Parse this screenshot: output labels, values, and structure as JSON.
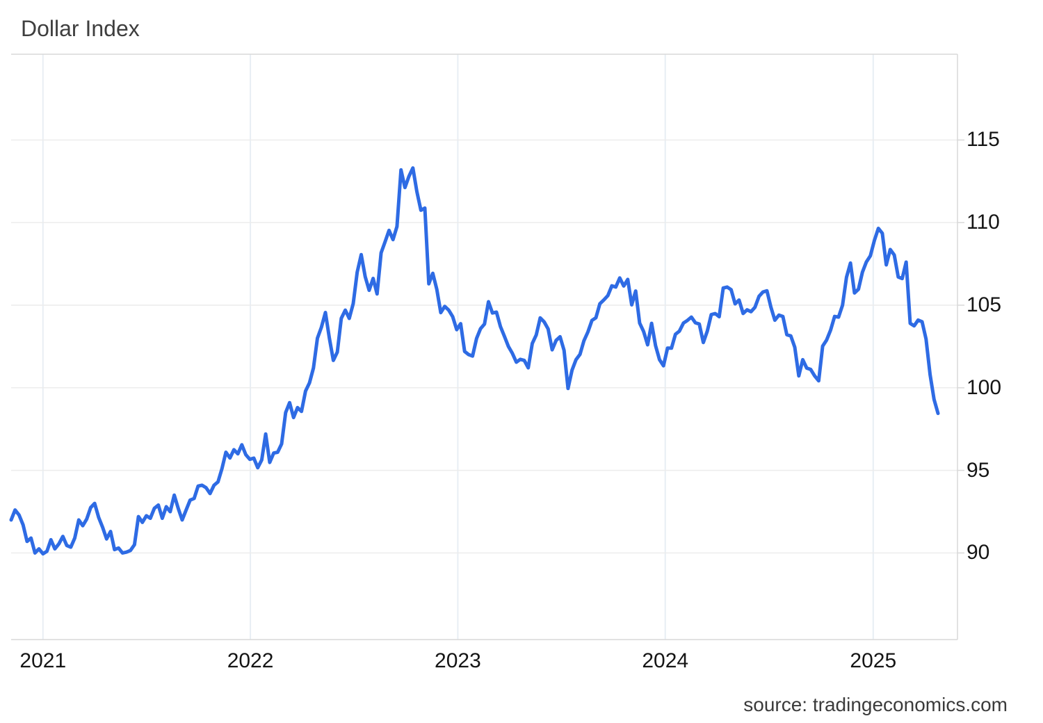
{
  "header": {
    "title": "Dollar Index"
  },
  "footer": {
    "source": "source: tradingeconomics.com"
  },
  "colors": {
    "line": "#2e6be4",
    "h_gridline": "#ececec",
    "v_gridline": "#e8eef4",
    "axis_border": "#d8d8d8",
    "axis_label": "#151515",
    "title_text": "#3e3e3e"
  },
  "chart_data": {
    "type": "line",
    "title": "Dollar Index",
    "frequency": "weekly",
    "x_start": "2020-11-06",
    "x_end": "2025-04-25",
    "x_tick_labels": [
      "2021",
      "2022",
      "2023",
      "2024",
      "2025"
    ],
    "x_tick_week_indices": [
      8,
      60.14,
      112.29,
      164.43,
      216.71
    ],
    "y_ticks": [
      115,
      110,
      105,
      100,
      95,
      90
    ],
    "y_range_visible": [
      85.0,
      120.2
    ],
    "grid": true,
    "legend": "none",
    "values": [
      92.0,
      92.6,
      92.3,
      91.7,
      90.7,
      90.9,
      90.0,
      90.25,
      89.95,
      90.1,
      90.8,
      90.25,
      90.55,
      91.0,
      90.45,
      90.35,
      90.9,
      92.0,
      91.65,
      92.05,
      92.75,
      93.0,
      92.15,
      91.55,
      90.85,
      91.3,
      90.2,
      90.3,
      90.0,
      90.05,
      90.15,
      90.5,
      92.2,
      91.85,
      92.25,
      92.1,
      92.7,
      92.9,
      92.1,
      92.8,
      92.5,
      93.5,
      92.7,
      92.0,
      92.6,
      93.2,
      93.3,
      94.05,
      94.1,
      93.95,
      93.6,
      94.1,
      94.3,
      95.1,
      96.1,
      95.75,
      96.25,
      96.0,
      96.55,
      95.95,
      95.67,
      95.74,
      95.16,
      95.63,
      97.2,
      95.48,
      96.05,
      96.1,
      96.6,
      98.5,
      99.1,
      98.2,
      98.8,
      98.57,
      99.8,
      100.3,
      101.2,
      103.0,
      103.66,
      104.56,
      103.0,
      101.66,
      102.16,
      104.2,
      104.7,
      104.2,
      105.1,
      107.0,
      108.06,
      106.73,
      105.9,
      106.62,
      105.68,
      108.17,
      108.84,
      109.53,
      108.97,
      109.76,
      113.19,
      112.12,
      112.8,
      113.31,
      111.88,
      110.75,
      110.88,
      106.29,
      106.93,
      105.96,
      104.55,
      104.93,
      104.7,
      104.31,
      103.52,
      103.88,
      102.2,
      102.01,
      101.92,
      102.99,
      103.58,
      103.86,
      105.21,
      104.53,
      104.58,
      103.71,
      103.12,
      102.51,
      102.09,
      101.55,
      101.72,
      101.66,
      101.21,
      102.68,
      103.2,
      104.23,
      103.99,
      103.56,
      102.3,
      102.87,
      103.09,
      102.27,
      99.96,
      101.07,
      101.7,
      102.02,
      102.85,
      103.38,
      104.08,
      104.24,
      105.09,
      105.32,
      105.58,
      106.17,
      106.1,
      106.65,
      106.16,
      106.56,
      105.02,
      105.86,
      103.92,
      103.41,
      102.6,
      103.9,
      102.55,
      101.7,
      101.33,
      102.4,
      102.4,
      103.24,
      103.43,
      103.92,
      104.08,
      104.28,
      103.94,
      103.86,
      102.74,
      103.43,
      104.43,
      104.49,
      104.3,
      106.04,
      106.1,
      105.94,
      105.08,
      105.31,
      104.5,
      104.72,
      104.61,
      104.88,
      105.54,
      105.8,
      105.87,
      104.88,
      104.09,
      104.4,
      104.32,
      103.21,
      103.14,
      102.46,
      100.72,
      101.7,
      101.19,
      101.11,
      100.72,
      100.42,
      102.52,
      102.89,
      103.49,
      104.32,
      104.28,
      105.0,
      106.69,
      107.55,
      105.74,
      105.97,
      107.0,
      107.62,
      107.99,
      108.92,
      109.65,
      109.35,
      107.44,
      108.37,
      108.04,
      106.71,
      106.61,
      107.61,
      103.9,
      103.75,
      104.1,
      104.0,
      102.95,
      100.8,
      99.3,
      98.45
    ]
  }
}
